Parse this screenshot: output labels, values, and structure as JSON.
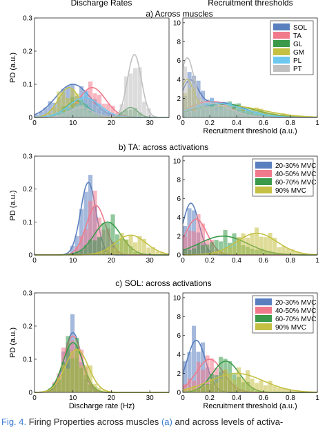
{
  "column_titles": {
    "left": "Discharge Rates",
    "right": "Recruitment thresholds"
  },
  "caption": {
    "label": "Fig. 4.",
    "text_a": "Firing Properties across muscles",
    "ref": "(a)",
    "text_b": "and across levels of activa-"
  },
  "colors": {
    "SOL": "#5a7fbf",
    "TA": "#f07a8c",
    "GL": "#3a9a4a",
    "GM": "#c4c043",
    "PL": "#6cc8ee",
    "PT": "#c0c0c0",
    "20-30% MVC": "#5a7fbf",
    "40-50% MVC": "#f07a8c",
    "60-70% MVC": "#3a9a4a",
    "90% MVC": "#c4c043"
  },
  "chart_data": [
    {
      "type": "area",
      "panel_title": "a) Across muscles",
      "side": "left",
      "xlabel": "",
      "ylabel": "PD (a.u.)",
      "xlim": [
        0,
        35
      ],
      "ylim": [
        0,
        0.3
      ],
      "xticks": [
        0,
        10,
        20,
        30
      ],
      "yticks": [
        0,
        0.1,
        0.2,
        0.3
      ],
      "series": [
        {
          "name": "SOL",
          "peaks": [
            [
              10,
              4.5,
              0.1
            ]
          ]
        },
        {
          "name": "TA",
          "peaks": [
            [
              15,
              3.5,
              0.09
            ]
          ]
        },
        {
          "name": "GL",
          "peaks": [
            [
              11,
              3.0,
              0.05
            ],
            [
              25,
              1.8,
              0.03
            ]
          ]
        },
        {
          "name": "GM",
          "peaks": [
            [
              9,
              2.8,
              0.09
            ]
          ]
        },
        {
          "name": "PL",
          "peaks": [
            [
              13,
              4.0,
              0.06
            ]
          ]
        },
        {
          "name": "PT",
          "peaks": [
            [
              26,
              1.8,
              0.19
            ],
            [
              12,
              3.0,
              0.03
            ]
          ]
        }
      ]
    },
    {
      "type": "area",
      "panel_title": "a) Across muscles",
      "side": "right",
      "xlabel": "Recruitment threshold (a.u.)",
      "ylabel": "",
      "xlim": [
        0,
        1
      ],
      "ylim": [
        0,
        10.5
      ],
      "xticks": [
        0,
        0.2,
        0.4,
        0.6,
        0.8,
        1
      ],
      "yticks": [
        0,
        2,
        4,
        6,
        8,
        10
      ],
      "legend": [
        "SOL",
        "TA",
        "GL",
        "GM",
        "PL",
        "PT"
      ],
      "series": [
        {
          "name": "SOL",
          "peaks": [
            [
              0.05,
              0.06,
              3.0
            ],
            [
              0.25,
              0.2,
              1.6
            ]
          ]
        },
        {
          "name": "TA",
          "peaks": [
            [
              0.2,
              0.15,
              1.7
            ]
          ]
        },
        {
          "name": "GL",
          "peaks": [
            [
              0.3,
              0.22,
              1.4
            ]
          ]
        },
        {
          "name": "GM",
          "peaks": [
            [
              0.03,
              0.05,
              3.5
            ],
            [
              0.35,
              0.25,
              1.2
            ]
          ]
        },
        {
          "name": "PL",
          "peaks": [
            [
              0.25,
              0.2,
              1.5
            ]
          ]
        },
        {
          "name": "PT",
          "peaks": [
            [
              0.03,
              0.05,
              5.5
            ],
            [
              0.2,
              0.15,
              1.5
            ]
          ]
        }
      ]
    },
    {
      "type": "area",
      "panel_title": "b) TA: across activations",
      "side": "left",
      "xlabel": "",
      "ylabel": "PD (a.u.)",
      "xlim": [
        0,
        35
      ],
      "ylim": [
        0,
        0.3
      ],
      "xticks": [
        0,
        10,
        20,
        30
      ],
      "yticks": [
        0,
        0.1,
        0.2,
        0.3
      ],
      "series": [
        {
          "name": "20-30% MVC",
          "peaks": [
            [
              14,
              2.0,
              0.22
            ]
          ]
        },
        {
          "name": "40-50% MVC",
          "peaks": [
            [
              16,
              2.5,
              0.15
            ]
          ]
        },
        {
          "name": "60-70% MVC",
          "peaks": [
            [
              19,
              3.5,
              0.1
            ]
          ]
        },
        {
          "name": "90% MVC",
          "peaks": [
            [
              25,
              4.0,
              0.06
            ]
          ]
        }
      ]
    },
    {
      "type": "area",
      "panel_title": "b) TA: across activations",
      "side": "right",
      "xlabel": "",
      "ylabel": "",
      "xlim": [
        0,
        1
      ],
      "ylim": [
        0,
        10.5
      ],
      "xticks": [
        0,
        0.2,
        0.4,
        0.6,
        0.8,
        1
      ],
      "yticks": [
        0,
        2,
        4,
        6,
        8,
        10
      ],
      "legend": [
        "20-30% MVC",
        "40-50% MVC",
        "60-70% MVC",
        "90% MVC"
      ],
      "series": [
        {
          "name": "20-30% MVC",
          "peaks": [
            [
              0.06,
              0.06,
              5.5
            ]
          ]
        },
        {
          "name": "40-50% MVC",
          "peaks": [
            [
              0.1,
              0.08,
              3.8
            ]
          ]
        },
        {
          "name": "60-70% MVC",
          "peaks": [
            [
              0.3,
              0.18,
              2.0
            ]
          ]
        },
        {
          "name": "90% MVC",
          "peaks": [
            [
              0.55,
              0.15,
              2.3
            ]
          ]
        }
      ]
    },
    {
      "type": "area",
      "panel_title": "c) SOL: across activations",
      "side": "left",
      "xlabel": "Discharge rate (Hz)",
      "ylabel": "PD (a.u.)",
      "xlim": [
        0,
        35
      ],
      "ylim": [
        0,
        0.3
      ],
      "xticks": [
        0,
        10,
        20,
        30
      ],
      "yticks": [
        0,
        0.1,
        0.2,
        0.3
      ],
      "series": [
        {
          "name": "20-30% MVC",
          "peaks": [
            [
              10,
              2.2,
              0.18
            ]
          ]
        },
        {
          "name": "40-50% MVC",
          "peaks": [
            [
              10,
              2.4,
              0.17
            ]
          ]
        },
        {
          "name": "60-70% MVC",
          "peaks": [
            [
              10,
              2.6,
              0.15
            ]
          ]
        },
        {
          "name": "90% MVC",
          "peaks": [
            [
              11,
              3.0,
              0.13
            ]
          ]
        }
      ]
    },
    {
      "type": "area",
      "panel_title": "c) SOL: across activations",
      "side": "right",
      "xlabel": "Recruitment threshold (a.u.)",
      "ylabel": "",
      "xlim": [
        0,
        1
      ],
      "ylim": [
        0,
        10.5
      ],
      "xticks": [
        0,
        0.2,
        0.4,
        0.6,
        0.8,
        1
      ],
      "yticks": [
        0,
        2,
        4,
        6,
        8,
        10
      ],
      "legend": [
        "20-30% MVC",
        "40-50% MVC",
        "60-70% MVC",
        "90% MVC"
      ],
      "series": [
        {
          "name": "20-30% MVC",
          "peaks": [
            [
              0.1,
              0.07,
              5.5
            ]
          ]
        },
        {
          "name": "40-50% MVC",
          "peaks": [
            [
              0.2,
              0.1,
              3.5
            ]
          ]
        },
        {
          "name": "60-70% MVC",
          "peaks": [
            [
              0.32,
              0.1,
              3.3
            ]
          ]
        },
        {
          "name": "90% MVC",
          "peaks": [
            [
              0.4,
              0.2,
              2.0
            ]
          ]
        }
      ]
    }
  ]
}
